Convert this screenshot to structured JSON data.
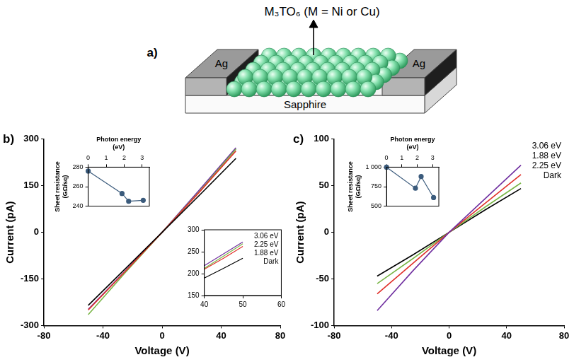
{
  "schematic": {
    "panel_label": "a)",
    "title": "M₃TO₆ (M = Ni or Cu)",
    "electrodes": [
      "Ag",
      "Ag"
    ],
    "substrate": "Sapphire"
  },
  "chart_data": [
    {
      "type": "line",
      "panel_label": "b)",
      "x_label": "Voltage (V)",
      "y_label": "Current (pA)",
      "xlim": [
        -80,
        80
      ],
      "xticks": [
        -80,
        -40,
        0,
        40,
        80
      ],
      "ylim": [
        -300,
        300
      ],
      "yticks": [
        -300,
        -150,
        0,
        150,
        300
      ],
      "grid": false,
      "x": [
        -50,
        -25,
        0,
        25,
        50
      ],
      "series": [
        {
          "color": "#000000",
          "values": [
            -235,
            -118,
            0,
            118,
            238
          ],
          "marker": "none",
          "line_style": "solid"
        },
        {
          "color": "#e0302a",
          "values": [
            -250,
            -126,
            0,
            128,
            262
          ],
          "marker": "none",
          "line_style": "solid"
        },
        {
          "color": "#7ab648",
          "values": [
            -265,
            -130,
            0,
            130,
            268
          ],
          "marker": "none",
          "line_style": "solid"
        },
        {
          "color": "#7030a0",
          "values": [
            -248,
            -125,
            0,
            135,
            272
          ],
          "marker": "none",
          "line_style": "solid"
        }
      ]
    },
    {
      "type": "line",
      "x_label": "Photon energy (eV)",
      "y_label": "Sheet resistance (GΩ/sq)",
      "xlim": [
        0,
        3.4
      ],
      "xticks": [
        0,
        1,
        2,
        3
      ],
      "ylim": [
        240,
        280
      ],
      "yticks": [
        240,
        260,
        280
      ],
      "grid": false,
      "x": [
        0,
        1.88,
        2.25,
        3.06
      ],
      "series": [
        {
          "color": "#3b5b7c",
          "values": [
            276,
            253,
            245,
            246
          ],
          "marker": "circle",
          "line_style": "solid"
        }
      ]
    },
    {
      "type": "line",
      "xlim": [
        40,
        60
      ],
      "xticks": [
        40,
        50,
        60
      ],
      "ylim": [
        150,
        300
      ],
      "yticks": [
        150,
        200,
        250,
        300
      ],
      "grid": false,
      "legend": "upper right",
      "x": [
        40,
        45,
        50
      ],
      "series": [
        {
          "name": "3.06 eV",
          "color": "#7030a0",
          "values": [
            218,
            245,
            272
          ],
          "marker": "none",
          "line_style": "solid"
        },
        {
          "name": "2.25 eV",
          "color": "#7ab648",
          "values": [
            212,
            240,
            268
          ],
          "marker": "none",
          "line_style": "solid"
        },
        {
          "name": "1.88 eV",
          "color": "#e0302a",
          "values": [
            210,
            235,
            262
          ],
          "marker": "none",
          "line_style": "solid"
        },
        {
          "name": "Dark",
          "color": "#000000",
          "values": [
            190,
            212,
            235
          ],
          "marker": "none",
          "line_style": "solid"
        }
      ]
    },
    {
      "type": "line",
      "panel_label": "c)",
      "x_label": "Voltage (V)",
      "y_label": "Current (pA)",
      "xlim": [
        -80,
        80
      ],
      "xticks": [
        -80,
        -40,
        0,
        40,
        80
      ],
      "ylim": [
        -100,
        100
      ],
      "yticks": [
        -100,
        -50,
        0,
        50,
        100
      ],
      "grid": false,
      "legend": "upper right",
      "x": [
        -50,
        -25,
        0,
        25,
        50
      ],
      "series": [
        {
          "name": "3.06 eV",
          "color": "#7030a0",
          "values": [
            -84,
            -41,
            0,
            36,
            72
          ],
          "marker": "none",
          "line_style": "solid"
        },
        {
          "name": "1.88 eV",
          "color": "#e0302a",
          "values": [
            -66,
            -33,
            0,
            31,
            62
          ],
          "marker": "none",
          "line_style": "solid"
        },
        {
          "name": "2.25 eV",
          "color": "#7ab648",
          "values": [
            -55,
            -28,
            0,
            27,
            53
          ],
          "marker": "none",
          "line_style": "solid"
        },
        {
          "name": "Dark",
          "color": "#000000",
          "values": [
            -47,
            -24,
            0,
            24,
            47
          ],
          "marker": "none",
          "line_style": "solid"
        }
      ]
    },
    {
      "type": "line",
      "x_label": "Photon energy (eV)",
      "y_label": "Sheet resistance (GΩ/sq)",
      "xlim": [
        0,
        3.4
      ],
      "xticks": [
        0,
        1,
        2,
        3
      ],
      "ylim": [
        500,
        1000
      ],
      "yticks": [
        500,
        750,
        {
          "value": 1000,
          "label": "1 000"
        }
      ],
      "grid": false,
      "x": [
        0,
        1.88,
        2.25,
        3.06
      ],
      "series": [
        {
          "color": "#3b5b7c",
          "values": [
            1000,
            730,
            880,
            610
          ],
          "marker": "circle",
          "line_style": "solid"
        }
      ]
    }
  ]
}
